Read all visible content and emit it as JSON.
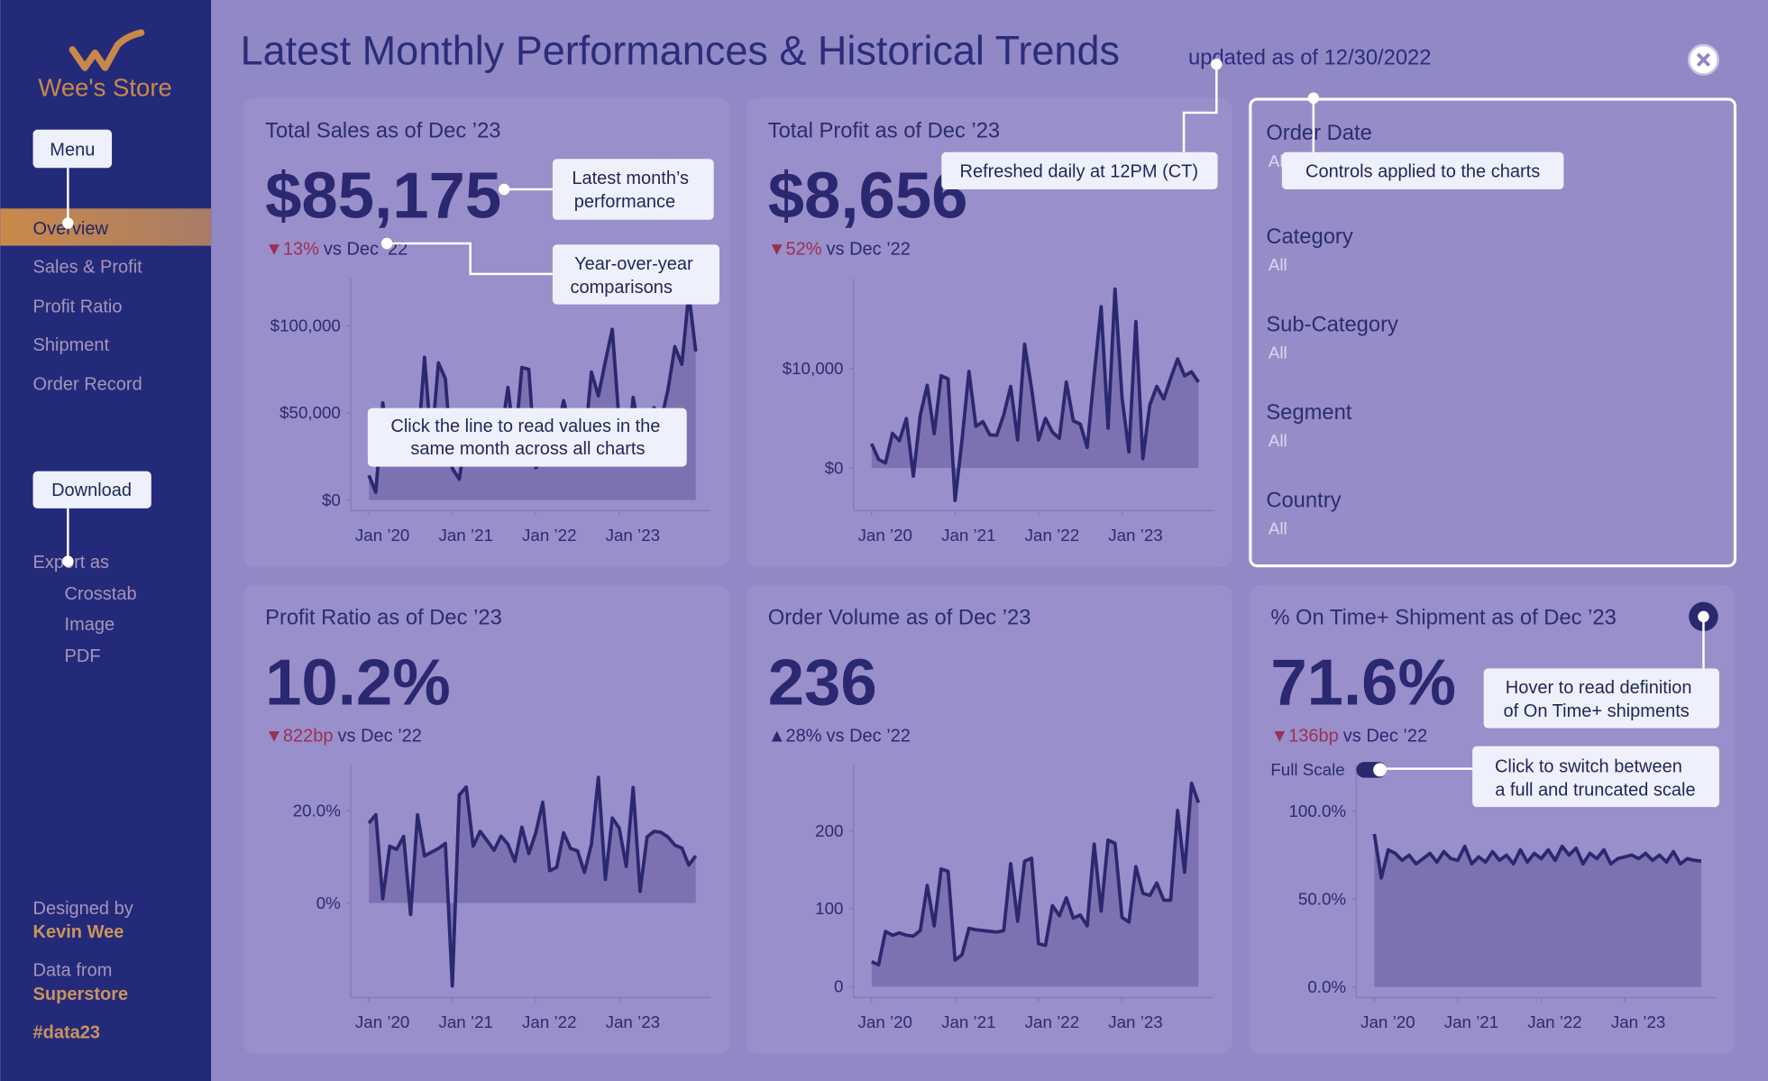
{
  "sidebar": {
    "brand": "Wee's Store",
    "menu_button": "Menu",
    "nav": [
      "Overview",
      "Sales & Profit",
      "Profit Ratio",
      "Shipment",
      "Order Record"
    ],
    "download_button": "Download",
    "export_label": "Export as",
    "export_options": [
      "Crosstab",
      "Image",
      "PDF"
    ],
    "credits": [
      {
        "label": "Designed by",
        "value": "Kevin Wee"
      },
      {
        "label": "Data from",
        "value": "Superstore"
      }
    ],
    "hashtag": "#data23"
  },
  "header": {
    "title": "Latest Monthly Performances & Historical Trends",
    "updated": "updated as of 12/30/2022"
  },
  "filters": [
    {
      "label": "Order Date",
      "value": "All"
    },
    {
      "label": "Category",
      "value": "All"
    },
    {
      "label": "Sub-Category",
      "value": "All"
    },
    {
      "label": "Segment",
      "value": "All"
    },
    {
      "label": "Country",
      "value": "All"
    }
  ],
  "tooltips": [
    {
      "lines": [
        "Latest month’s",
        "performance"
      ]
    },
    {
      "lines": [
        "Year-over-year",
        "comparisons"
      ]
    },
    {
      "lines": [
        "Click the line to read values in the",
        "same month across all charts"
      ]
    },
    {
      "lines": [
        "Refreshed daily at 12PM (CT)"
      ]
    },
    {
      "lines": [
        "Controls applied to the charts"
      ]
    },
    {
      "lines": [
        "Hover to read definition",
        "of On Time+ shipments"
      ]
    },
    {
      "lines": [
        "Click to switch between",
        "a full and truncated scale"
      ]
    }
  ],
  "chart_data": [
    {
      "type": "area",
      "title": "Total Sales as of Dec ’23",
      "kpi": "$85,175",
      "change": "▼13%",
      "change_note": "vs Dec ’22",
      "change_color": "#9b2f55",
      "color": "#2b2870",
      "categories": [
        "Jan ’20",
        null,
        null,
        null,
        null,
        null,
        null,
        null,
        null,
        null,
        null,
        null,
        "Jan ’21",
        null,
        null,
        null,
        null,
        null,
        null,
        null,
        null,
        null,
        null,
        null,
        "Jan ’22",
        null,
        null,
        null,
        null,
        null,
        null,
        null,
        null,
        null,
        null,
        null,
        "Jan ’23",
        null,
        null,
        null,
        null,
        null,
        null,
        null,
        null,
        null,
        null,
        null
      ],
      "values": [
        14200,
        4500,
        55700,
        28300,
        23600,
        34600,
        33900,
        27900,
        81800,
        31500,
        78600,
        69500,
        18200,
        12000,
        38700,
        34200,
        30100,
        24800,
        28800,
        36900,
        64600,
        31400,
        76000,
        74900,
        18500,
        23000,
        51700,
        38800,
        57000,
        40300,
        39300,
        31100,
        73400,
        59700,
        79400,
        97900,
        44000,
        20300,
        58900,
        36500,
        44300,
        53000,
        45300,
        63100,
        87900,
        77800,
        118400,
        85175
      ],
      "ylim": [
        -6000,
        127000
      ],
      "yticks": [
        {
          "value": 0,
          "label": "$0"
        },
        {
          "value": 50000,
          "label": "$50,000"
        },
        {
          "value": 100000,
          "label": "$100,000"
        }
      ]
    },
    {
      "type": "area",
      "title": "Total Profit as of Dec ’23",
      "kpi": "$8,656",
      "change": "▼52%",
      "change_note": "vs Dec ’22",
      "change_color": "#9b2f55",
      "color": "#2b2870",
      "categories": [
        "Jan ’20",
        null,
        null,
        null,
        null,
        null,
        null,
        null,
        null,
        null,
        null,
        null,
        "Jan ’21",
        null,
        null,
        null,
        null,
        null,
        null,
        null,
        null,
        null,
        null,
        null,
        "Jan ’22",
        null,
        null,
        null,
        null,
        null,
        null,
        null,
        null,
        null,
        null,
        null,
        "Jan ’23",
        null,
        null,
        null,
        null,
        null,
        null,
        null,
        null,
        null,
        null,
        null
      ],
      "values": [
        2450,
        860,
        500,
        3490,
        2740,
        4980,
        -840,
        5320,
        8330,
        3450,
        9290,
        8980,
        -3280,
        2810,
        9730,
        4190,
        4670,
        3340,
        3290,
        5360,
        8210,
        2820,
        12470,
        8020,
        2820,
        5000,
        3610,
        2980,
        8660,
        4750,
        4430,
        2060,
        9330,
        16240,
        4010,
        18030,
        7140,
        1610,
        14750,
        930,
        6340,
        8220,
        6950,
        9040,
        10990,
        9280,
        9690,
        8656
      ],
      "ylim": [
        -4300,
        19100
      ],
      "yticks": [
        {
          "value": 0,
          "label": "$0"
        },
        {
          "value": 10000,
          "label": "$10,000"
        }
      ]
    },
    {
      "type": "area",
      "title": "Profit Ratio as of Dec ’23",
      "kpi": "10.2%",
      "change": "▼822bp",
      "change_note": "vs Dec ’22",
      "change_color": "#9b2f55",
      "color": "#2b2870",
      "categories": [
        "Jan ’20",
        null,
        null,
        null,
        null,
        null,
        null,
        null,
        null,
        null,
        null,
        null,
        "Jan ’21",
        null,
        null,
        null,
        null,
        null,
        null,
        null,
        null,
        null,
        null,
        null,
        "Jan ’22",
        null,
        null,
        null,
        null,
        null,
        null,
        null,
        null,
        null,
        null,
        null,
        "Jan ’23",
        null,
        null,
        null,
        null,
        null,
        null,
        null,
        null,
        null,
        null,
        null
      ],
      "values": [
        17.3,
        19.1,
        0.9,
        12.3,
        11.6,
        14.4,
        -2.5,
        19.1,
        10.2,
        11.0,
        11.8,
        12.9,
        -18.0,
        23.4,
        25.1,
        12.3,
        15.5,
        13.5,
        11.4,
        14.5,
        12.7,
        9.0,
        16.4,
        10.7,
        15.2,
        21.8,
        7.0,
        7.7,
        15.2,
        11.8,
        11.3,
        6.6,
        12.7,
        27.2,
        5.1,
        18.4,
        16.2,
        7.9,
        25.0,
        2.5,
        14.3,
        15.5,
        15.3,
        14.3,
        12.5,
        11.9,
        8.2,
        10.2
      ],
      "ylim": [
        -20.5,
        29.8
      ],
      "yticks": [
        {
          "value": 0,
          "label": "0%"
        },
        {
          "value": 20,
          "label": "20.0%"
        }
      ]
    },
    {
      "type": "area",
      "title": "Order Volume as of Dec ’23",
      "kpi": "236",
      "change": "▲28%",
      "change_note": "vs Dec ’22",
      "change_color": "#2a2870",
      "color": "#2b2870",
      "categories": [
        "Jan ’20",
        null,
        null,
        null,
        null,
        null,
        null,
        null,
        null,
        null,
        null,
        null,
        "Jan ’21",
        null,
        null,
        null,
        null,
        null,
        null,
        null,
        null,
        null,
        null,
        null,
        "Jan ’22",
        null,
        null,
        null,
        null,
        null,
        null,
        null,
        null,
        null,
        null,
        null,
        "Jan ’23",
        null,
        null,
        null,
        null,
        null,
        null,
        null,
        null,
        null,
        null,
        null
      ],
      "values": [
        32,
        28,
        71,
        66,
        69,
        66,
        65,
        72,
        130,
        78,
        151,
        148,
        34,
        41,
        75,
        73,
        72,
        71,
        70,
        72,
        158,
        84,
        161,
        165,
        55,
        53,
        104,
        91,
        114,
        88,
        92,
        78,
        183,
        97,
        188,
        184,
        89,
        83,
        154,
        120,
        117,
        133,
        111,
        111,
        226,
        147,
        261,
        236
      ],
      "ylim": [
        -14,
        284
      ],
      "yticks": [
        0,
        100,
        200
      ]
    },
    {
      "type": "area",
      "title": "% On Time+ Shipment as of Dec ’23",
      "kpi": "71.6%",
      "change": "▼136bp",
      "change_note": "vs Dec ’22",
      "change_color": "#9b2f55",
      "color": "#2b2870",
      "toggle_label": "Full Scale",
      "categories": [
        "Jan ’20",
        null,
        null,
        null,
        null,
        null,
        null,
        null,
        null,
        null,
        null,
        null,
        "Jan ’21",
        null,
        null,
        null,
        null,
        null,
        null,
        null,
        null,
        null,
        null,
        null,
        "Jan ’22",
        null,
        null,
        null,
        null,
        null,
        null,
        null,
        null,
        null,
        null,
        null,
        "Jan ’23",
        null,
        null,
        null,
        null,
        null,
        null,
        null,
        null,
        null,
        null,
        null
      ],
      "values": [
        87,
        62,
        78,
        76,
        72,
        75,
        70,
        73,
        76,
        71,
        77,
        73,
        72,
        80,
        70,
        74,
        71,
        77,
        72,
        75,
        70,
        78,
        71,
        76,
        73,
        78,
        72,
        80,
        75,
        79,
        70,
        76,
        73,
        78,
        70,
        73,
        74,
        75,
        73,
        76,
        72,
        75,
        71,
        77,
        70,
        73,
        72,
        71.6
      ],
      "ylim": [
        -6,
        126
      ],
      "yticks": [
        {
          "value": 0,
          "label": "0.0%"
        },
        {
          "value": 50,
          "label": "50.0%"
        },
        {
          "value": 100,
          "label": "100.0%"
        }
      ]
    }
  ]
}
